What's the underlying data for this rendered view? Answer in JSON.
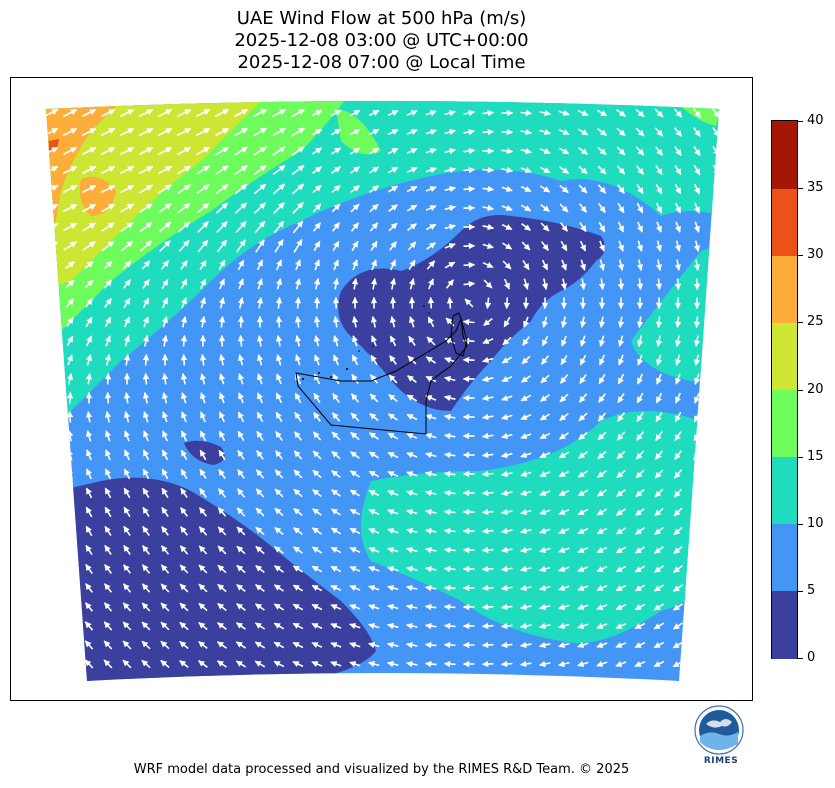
{
  "title": {
    "line1": "UAE Wind Flow at 500 hPa (m/s)",
    "line2": "2025-12-08 03:00 @ UTC+00:00",
    "line3": "2025-12-08 07:00 @ Local Time"
  },
  "colorbar": {
    "ticks": [
      "0",
      "5",
      "10",
      "15",
      "20",
      "25",
      "30",
      "35",
      "40"
    ],
    "colors": [
      "#3b3f9e",
      "#4396f5",
      "#1fdcbe",
      "#6efc5c",
      "#cde634",
      "#fdad3a",
      "#ec5218",
      "#a41606"
    ]
  },
  "logo": {
    "text": "RIMES",
    "icon": "rimes-globe-logo"
  },
  "footer": "WRF model data processed and visualized by the RIMES R&D Team. © 2025"
}
